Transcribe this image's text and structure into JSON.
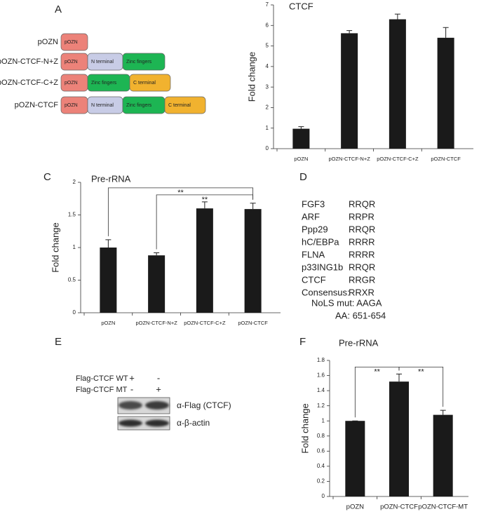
{
  "panel_labels": [
    "A",
    "C",
    "D",
    "E",
    "F"
  ],
  "constructs": [
    {
      "label": "pOZN",
      "domains": [
        {
          "text": "pOZN",
          "color": "#ec8279"
        }
      ]
    },
    {
      "label": "pOZN-CTCF-N+Z",
      "domains": [
        {
          "text": "pOZN",
          "color": "#ec8279"
        },
        {
          "text": "N terminal",
          "color": "#c8cce6"
        },
        {
          "text": "Zinc fingers",
          "color": "#1db553"
        }
      ]
    },
    {
      "label": "pOZN-CTCF-C+Z",
      "domains": [
        {
          "text": "pOZN",
          "color": "#ec8279"
        },
        {
          "text": "Zinc fingers",
          "color": "#1db553"
        },
        {
          "text": "C terminal",
          "color": "#f1b22f"
        }
      ]
    },
    {
      "label": "pOZN-CTCF",
      "domains": [
        {
          "text": "pOZN",
          "color": "#ec8279"
        },
        {
          "text": "N terminal",
          "color": "#c8cce6"
        },
        {
          "text": "Zinc fingers",
          "color": "#1db553"
        },
        {
          "text": "C terminal",
          "color": "#f1b22f"
        }
      ]
    }
  ],
  "chart_data": [
    {
      "type": "bar",
      "title": "CTCF",
      "y_label": "Fold change",
      "categories": [
        "pOZN",
        "pOZN-CTCF-N+Z",
        "pOZN-CTCF-C+Z",
        "pOZN-CTCF"
      ],
      "values": [
        0.97,
        5.62,
        6.3,
        5.4
      ],
      "errors": [
        0.1,
        0.13,
        0.25,
        0.5
      ],
      "color": "#1a1a1a",
      "ylim": [
        0,
        7
      ],
      "yticks": [
        0,
        1,
        2,
        3,
        4,
        5,
        6,
        7
      ]
    },
    {
      "type": "bar",
      "title": "Pre-rRNA",
      "y_label": "Fold change",
      "categories": [
        "pOZN",
        "pOZN-CTCF-N+Z",
        "pOZN-CTCF-C+Z",
        "pOZN-CTCF"
      ],
      "values": [
        1.0,
        0.88,
        1.6,
        1.59
      ],
      "errors": [
        0.12,
        0.04,
        0.1,
        0.09
      ],
      "color": "#1a1a1a",
      "ylim": [
        0,
        2
      ],
      "yticks": [
        0,
        0.5,
        1,
        1.5,
        2
      ],
      "comparisons": [
        {
          "label": "**",
          "groups": [
            "pOZN",
            "pOZN-CTCF"
          ]
        },
        {
          "label": "**",
          "groups": [
            "pOZN-CTCF-N+Z",
            "pOZN-CTCF"
          ]
        }
      ]
    },
    {
      "type": "bar",
      "title": "Pre-rRNA",
      "y_label": "Fold change",
      "categories": [
        "pOZN",
        "pOZN-CTCF",
        "pOZN-CTCF-MT"
      ],
      "values": [
        1.0,
        1.52,
        1.08
      ],
      "errors": [
        0,
        0.1,
        0.06
      ],
      "color": "#1a1a1a",
      "ylim": [
        0,
        1.8
      ],
      "yticks": [
        0,
        0.2,
        0.4,
        0.6,
        0.8,
        1,
        1.2,
        1.4,
        1.6,
        1.8
      ],
      "comparisons": [
        {
          "label": "**",
          "groups": [
            "pOZN",
            "pOZN-CTCF"
          ]
        },
        {
          "label": "**",
          "groups": [
            "pOZN-CTCF",
            "pOZN-CTCF-MT"
          ]
        }
      ]
    }
  ],
  "motifs": {
    "rows": [
      [
        "FGF3",
        "RRQR"
      ],
      [
        "ARF",
        "RRPR"
      ],
      [
        "Ppp29",
        "RRQR"
      ],
      [
        "hC/EBPa",
        "RRRR"
      ],
      [
        "FLNA",
        "RRRR"
      ],
      [
        "p33ING1b",
        "RRQR"
      ],
      [
        "CTCF",
        "RRGR"
      ],
      [
        "Consensus:",
        "RRXR"
      ]
    ],
    "mutation": "NoLS mut:  AAGA",
    "position": "AA: 651-654"
  },
  "blot": {
    "conditions": [
      {
        "label": "Flag-CTCF WT",
        "lanes": [
          "+",
          "-"
        ]
      },
      {
        "label": "Flag-CTCF MT",
        "lanes": [
          "-",
          "+"
        ]
      }
    ],
    "antibodies": [
      "α-Flag (CTCF)",
      "α-β-actin"
    ]
  }
}
